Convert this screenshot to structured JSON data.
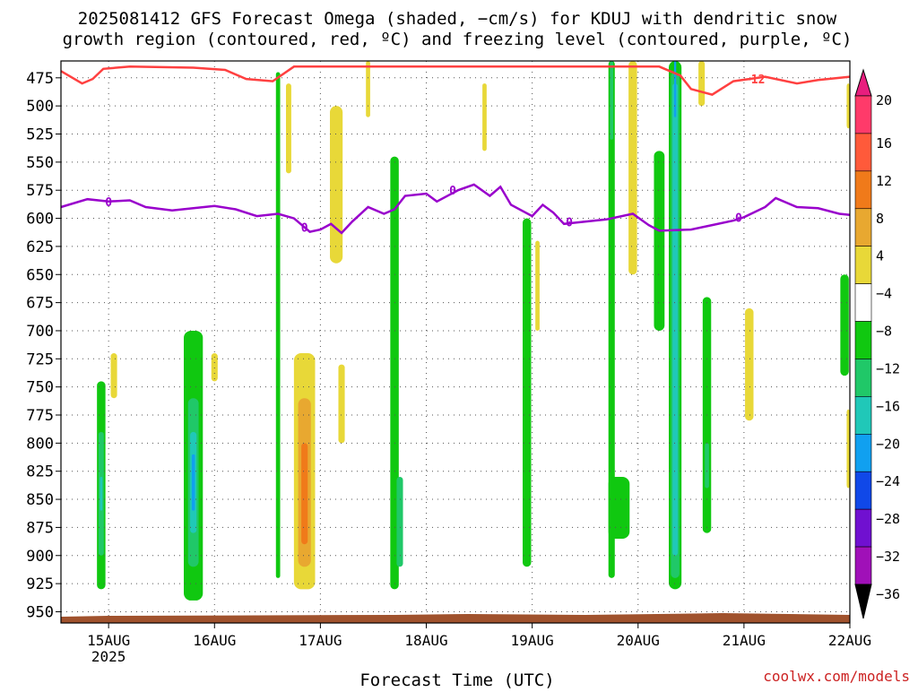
{
  "title_line1": "2025081412 GFS Forecast Omega (shaded, −cm/s) for KDUJ with dendritic snow",
  "title_line2": "growth region (contoured, red, ºC) and freezing level (contoured, purple, ºC)",
  "xlabel": "Forecast Time (UTC)",
  "credit": "coolwx.com/models",
  "colors": {
    "grid": "#555555",
    "freezing_line": "#9900cc",
    "dgz_line": "#ff4040",
    "terrain": "#a0522d"
  },
  "chart_data": {
    "type": "heatmap",
    "y_axis": {
      "label": "",
      "scale": "pressure (hPa), inverted",
      "ticks": [
        475,
        500,
        525,
        550,
        575,
        600,
        625,
        650,
        675,
        700,
        725,
        750,
        775,
        800,
        825,
        850,
        875,
        900,
        925,
        950
      ],
      "range": [
        460,
        960
      ]
    },
    "x_axis": {
      "label": "Forecast Time (UTC)",
      "ticks": [
        "15AUG",
        "16AUG",
        "17AUG",
        "18AUG",
        "19AUG",
        "20AUG",
        "21AUG",
        "22AUG"
      ],
      "year_label": "2025",
      "range_days": [
        14.55,
        22.0
      ]
    },
    "colorbar": {
      "levels": [
        "20",
        "16",
        "12",
        "8",
        "4",
        "−4",
        "−8",
        "−12",
        "−16",
        "−20",
        "−24",
        "−28",
        "−32",
        "−36"
      ],
      "colors": [
        "#ff3a6a",
        "#ff5a3a",
        "#f07a1a",
        "#e8a830",
        "#e8d838",
        "#ffffff",
        "#10c810",
        "#20c868",
        "#20c8b8",
        "#10a0f0",
        "#1048e8",
        "#7010d0",
        "#a010b8",
        "#a0a0a0",
        "#000000"
      ],
      "top_color": "#e81e7e"
    },
    "freezing_level_label": "0",
    "freezing_level_series": {
      "name": "0",
      "points": [
        [
          14.55,
          590
        ],
        [
          14.8,
          583
        ],
        [
          15.0,
          585
        ],
        [
          15.2,
          584
        ],
        [
          15.35,
          590
        ],
        [
          15.6,
          593
        ],
        [
          15.8,
          591
        ],
        [
          16.0,
          589
        ],
        [
          16.2,
          592
        ],
        [
          16.4,
          598
        ],
        [
          16.6,
          596
        ],
        [
          16.75,
          600
        ],
        [
          16.85,
          608
        ],
        [
          16.9,
          612
        ],
        [
          17.0,
          610
        ],
        [
          17.1,
          605
        ],
        [
          17.2,
          613
        ],
        [
          17.3,
          603
        ],
        [
          17.45,
          590
        ],
        [
          17.6,
          596
        ],
        [
          17.7,
          592
        ],
        [
          17.8,
          580
        ],
        [
          18.0,
          578
        ],
        [
          18.1,
          585
        ],
        [
          18.3,
          575
        ],
        [
          18.45,
          570
        ],
        [
          18.6,
          580
        ],
        [
          18.7,
          572
        ],
        [
          18.8,
          588
        ],
        [
          19.0,
          598
        ],
        [
          19.1,
          588
        ],
        [
          19.2,
          595
        ],
        [
          19.3,
          605
        ],
        [
          19.5,
          603
        ],
        [
          19.7,
          601
        ],
        [
          19.95,
          596
        ],
        [
          20.1,
          606
        ],
        [
          20.2,
          611
        ],
        [
          20.5,
          610
        ],
        [
          20.7,
          606
        ],
        [
          20.9,
          602
        ],
        [
          21.0,
          599
        ],
        [
          21.2,
          590
        ],
        [
          21.3,
          582
        ],
        [
          21.5,
          590
        ],
        [
          21.7,
          591
        ],
        [
          21.9,
          596
        ],
        [
          22.0,
          597
        ]
      ]
    },
    "dgz_label": "−12",
    "dgz_series": {
      "name": "−12",
      "points": [
        [
          14.55,
          469
        ],
        [
          14.75,
          480
        ],
        [
          14.85,
          476
        ],
        [
          14.95,
          467
        ],
        [
          15.2,
          465
        ],
        [
          15.8,
          466
        ],
        [
          16.1,
          468
        ],
        [
          16.3,
          476
        ],
        [
          16.55,
          478
        ],
        [
          16.75,
          465
        ],
        [
          17.5,
          465
        ],
        [
          19.0,
          465
        ],
        [
          20.2,
          465
        ],
        [
          20.4,
          473
        ],
        [
          20.5,
          485
        ],
        [
          20.7,
          490
        ],
        [
          20.9,
          478
        ],
        [
          21.2,
          474
        ],
        [
          21.5,
          480
        ],
        [
          21.7,
          477
        ],
        [
          22.0,
          474
        ]
      ]
    },
    "omega_regions": [
      {
        "day": 14.93,
        "half_width": 0.04,
        "p_top": 745,
        "p_bot": 930,
        "value": -8
      },
      {
        "day": 14.93,
        "half_width": 0.025,
        "p_top": 790,
        "p_bot": 900,
        "value": -12
      },
      {
        "day": 14.93,
        "half_width": 0.012,
        "p_top": 830,
        "p_bot": 860,
        "value": -16
      },
      {
        "day": 15.8,
        "half_width": 0.09,
        "p_top": 700,
        "p_bot": 940,
        "value": -8
      },
      {
        "day": 15.8,
        "half_width": 0.05,
        "p_top": 760,
        "p_bot": 910,
        "value": -12
      },
      {
        "day": 15.8,
        "half_width": 0.03,
        "p_top": 790,
        "p_bot": 880,
        "value": -16
      },
      {
        "day": 15.8,
        "half_width": 0.015,
        "p_top": 810,
        "p_bot": 860,
        "value": -24
      },
      {
        "day": 16.6,
        "half_width": 0.02,
        "p_top": 470,
        "p_bot": 920,
        "value": -8
      },
      {
        "day": 16.85,
        "half_width": 0.1,
        "p_top": 720,
        "p_bot": 930,
        "value": 4
      },
      {
        "day": 16.85,
        "half_width": 0.06,
        "p_top": 760,
        "p_bot": 910,
        "value": 8
      },
      {
        "day": 16.85,
        "half_width": 0.03,
        "p_top": 800,
        "p_bot": 890,
        "value": 12
      },
      {
        "day": 17.15,
        "half_width": 0.06,
        "p_top": 500,
        "p_bot": 640,
        "value": 4
      },
      {
        "day": 17.7,
        "half_width": 0.04,
        "p_top": 545,
        "p_bot": 930,
        "value": -8
      },
      {
        "day": 17.75,
        "half_width": 0.03,
        "p_top": 830,
        "p_bot": 910,
        "value": -12
      },
      {
        "day": 18.95,
        "half_width": 0.04,
        "p_top": 600,
        "p_bot": 910,
        "value": -8
      },
      {
        "day": 19.75,
        "half_width": 0.03,
        "p_top": 460,
        "p_bot": 920,
        "value": -8
      },
      {
        "day": 19.75,
        "half_width": 0.015,
        "p_top": 460,
        "p_bot": 530,
        "value": -12
      },
      {
        "day": 19.82,
        "half_width": 0.1,
        "p_top": 830,
        "p_bot": 885,
        "value": -8
      },
      {
        "day": 19.95,
        "half_width": 0.04,
        "p_top": 460,
        "p_bot": 650,
        "value": 4
      },
      {
        "day": 20.2,
        "half_width": 0.05,
        "p_top": 540,
        "p_bot": 700,
        "value": -8
      },
      {
        "day": 20.35,
        "half_width": 0.06,
        "p_top": 460,
        "p_bot": 930,
        "value": -8
      },
      {
        "day": 20.35,
        "half_width": 0.04,
        "p_top": 470,
        "p_bot": 920,
        "value": -12
      },
      {
        "day": 20.35,
        "half_width": 0.025,
        "p_top": 480,
        "p_bot": 900,
        "value": -16
      },
      {
        "day": 20.35,
        "half_width": 0.01,
        "p_top": 460,
        "p_bot": 510,
        "value": -20
      },
      {
        "day": 20.6,
        "half_width": 0.03,
        "p_top": 460,
        "p_bot": 500,
        "value": 4
      },
      {
        "day": 20.65,
        "half_width": 0.04,
        "p_top": 670,
        "p_bot": 880,
        "value": -8
      },
      {
        "day": 20.65,
        "half_width": 0.02,
        "p_top": 800,
        "p_bot": 840,
        "value": -12
      },
      {
        "day": 21.05,
        "half_width": 0.04,
        "p_top": 680,
        "p_bot": 780,
        "value": 4
      },
      {
        "day": 21.95,
        "half_width": 0.04,
        "p_top": 650,
        "p_bot": 740,
        "value": -8
      },
      {
        "day": 22.0,
        "half_width": 0.03,
        "p_top": 770,
        "p_bot": 840,
        "value": 4
      },
      {
        "day": 22.0,
        "half_width": 0.03,
        "p_top": 480,
        "p_bot": 520,
        "value": 4
      },
      {
        "day": 15.05,
        "half_width": 0.03,
        "p_top": 720,
        "p_bot": 760,
        "value": 4
      },
      {
        "day": 16.0,
        "half_width": 0.03,
        "p_top": 720,
        "p_bot": 745,
        "value": 4
      },
      {
        "day": 17.2,
        "half_width": 0.03,
        "p_top": 730,
        "p_bot": 800,
        "value": 4
      },
      {
        "day": 16.7,
        "half_width": 0.025,
        "p_top": 480,
        "p_bot": 560,
        "value": 4
      },
      {
        "day": 17.45,
        "half_width": 0.02,
        "p_top": 460,
        "p_bot": 510,
        "value": 4
      },
      {
        "day": 19.05,
        "half_width": 0.02,
        "p_top": 620,
        "p_bot": 700,
        "value": 4
      },
      {
        "day": 18.55,
        "half_width": 0.02,
        "p_top": 480,
        "p_bot": 540,
        "value": 4
      }
    ]
  }
}
